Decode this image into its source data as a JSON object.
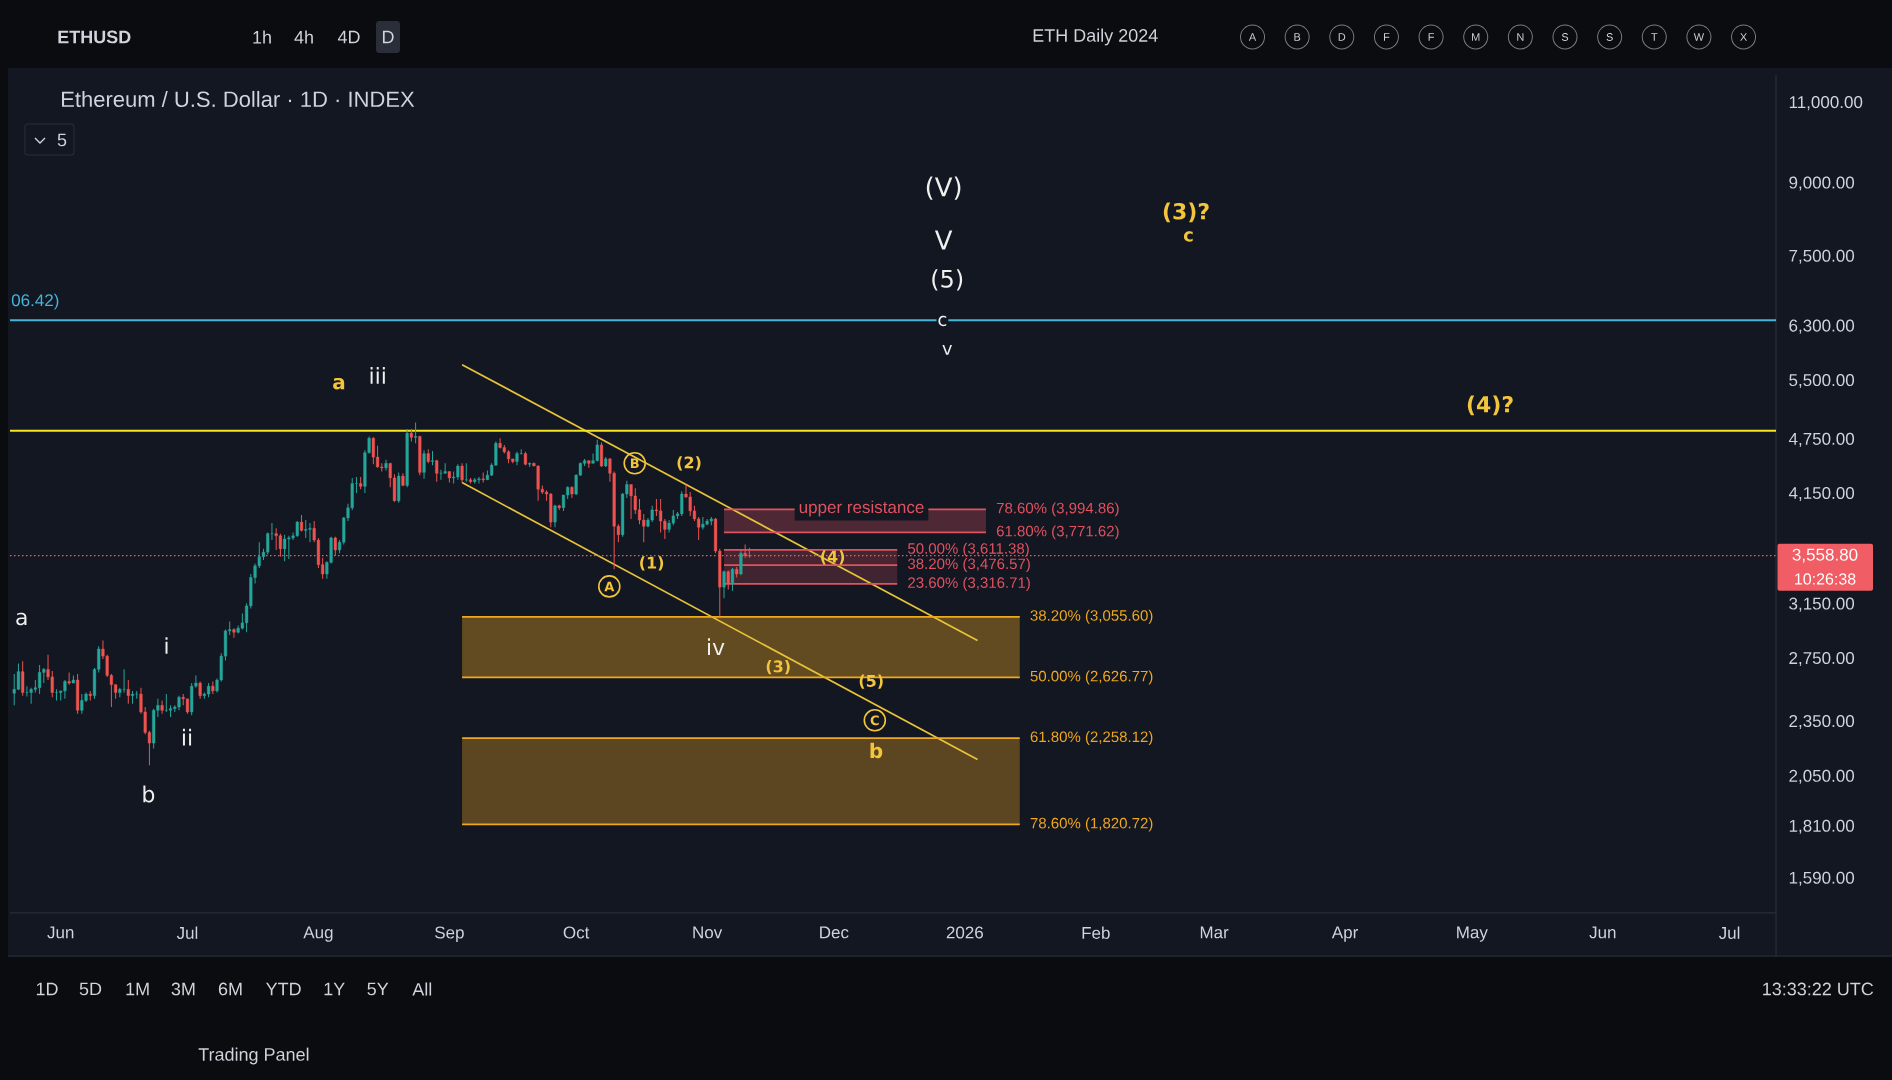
{
  "chart_data": {
    "type": "candlestick",
    "title": "Ethereum / U.S. Dollar · 1D · INDEX",
    "log": "y",
    "xlim": [
      "2025-05-20",
      "2026-07-12"
    ],
    "ylim": [
      1460,
      11800
    ],
    "xticks": [
      {
        "value": "2025-06-01",
        "label": "Jun"
      },
      {
        "value": "2025-07-01",
        "label": "Jul"
      },
      {
        "value": "2025-08-01",
        "label": "Aug"
      },
      {
        "value": "2025-09-01",
        "label": "Sep"
      },
      {
        "value": "2025-10-01",
        "label": "Oct"
      },
      {
        "value": "2025-11-01",
        "label": "Nov"
      },
      {
        "value": "2025-12-01",
        "label": "Dec"
      },
      {
        "value": "2026-01-01",
        "label": "2026"
      },
      {
        "value": "2026-02-01",
        "label": "Feb"
      },
      {
        "value": "2026-03-01",
        "label": "Mar"
      },
      {
        "value": "2026-04-01",
        "label": "Apr"
      },
      {
        "value": "2026-05-01",
        "label": "May"
      },
      {
        "value": "2026-06-01",
        "label": "Jun"
      },
      {
        "value": "2026-07-01",
        "label": "Jul"
      }
    ],
    "yticks": [
      {
        "value": 11000,
        "label": "11,000.00"
      },
      {
        "value": 9000,
        "label": "9,000.00"
      },
      {
        "value": 7500,
        "label": "7,500.00"
      },
      {
        "value": 6300,
        "label": "6,300.00"
      },
      {
        "value": 5500,
        "label": "5,500.00"
      },
      {
        "value": 4750,
        "label": "4,750.00"
      },
      {
        "value": 4150,
        "label": "4,150.00"
      },
      {
        "value": 3150,
        "label": "3,150.00"
      },
      {
        "value": 2750,
        "label": "2,750.00"
      },
      {
        "value": 2350,
        "label": "2,350.00"
      },
      {
        "value": 2050,
        "label": "2,050.00"
      },
      {
        "value": 1810,
        "label": "1,810.00"
      },
      {
        "value": 1590,
        "label": "1,590.00"
      }
    ],
    "x": [
      "2025-05-21",
      "2025-05-22",
      "2025-05-23",
      "2025-05-24",
      "2025-05-25",
      "2025-05-26",
      "2025-05-27",
      "2025-05-28",
      "2025-05-29",
      "2025-05-30",
      "2025-05-31",
      "2025-06-01",
      "2025-06-02",
      "2025-06-03",
      "2025-06-04",
      "2025-06-05",
      "2025-06-06",
      "2025-06-07",
      "2025-06-08",
      "2025-06-09",
      "2025-06-10",
      "2025-06-11",
      "2025-06-12",
      "2025-06-13",
      "2025-06-14",
      "2025-06-15",
      "2025-06-16",
      "2025-06-17",
      "2025-06-18",
      "2025-06-19",
      "2025-06-20",
      "2025-06-21",
      "2025-06-22",
      "2025-06-23",
      "2025-06-24",
      "2025-06-25",
      "2025-06-26",
      "2025-06-27",
      "2025-06-28",
      "2025-06-29",
      "2025-06-30",
      "2025-07-01",
      "2025-07-02",
      "2025-07-03",
      "2025-07-04",
      "2025-07-05",
      "2025-07-06",
      "2025-07-07",
      "2025-07-08",
      "2025-07-09",
      "2025-07-10",
      "2025-07-11",
      "2025-07-12",
      "2025-07-13",
      "2025-07-14",
      "2025-07-15",
      "2025-07-16",
      "2025-07-17",
      "2025-07-18",
      "2025-07-19",
      "2025-07-20",
      "2025-07-21",
      "2025-07-22",
      "2025-07-23",
      "2025-07-24",
      "2025-07-25",
      "2025-07-26",
      "2025-07-27",
      "2025-07-28",
      "2025-07-29",
      "2025-07-30",
      "2025-07-31",
      "2025-08-01",
      "2025-08-02",
      "2025-08-03",
      "2025-08-04",
      "2025-08-05",
      "2025-08-06",
      "2025-08-07",
      "2025-08-08",
      "2025-08-09",
      "2025-08-10",
      "2025-08-11",
      "2025-08-12",
      "2025-08-13",
      "2025-08-14",
      "2025-08-15",
      "2025-08-16",
      "2025-08-17",
      "2025-08-18",
      "2025-08-19",
      "2025-08-20",
      "2025-08-21",
      "2025-08-22",
      "2025-08-23",
      "2025-08-24",
      "2025-08-25",
      "2025-08-26",
      "2025-08-27",
      "2025-08-28",
      "2025-08-29",
      "2025-08-30",
      "2025-08-31",
      "2025-09-01",
      "2025-09-02",
      "2025-09-03",
      "2025-09-04",
      "2025-09-05",
      "2025-09-06",
      "2025-09-07",
      "2025-09-08",
      "2025-09-09",
      "2025-09-10",
      "2025-09-11",
      "2025-09-12",
      "2025-09-13",
      "2025-09-14",
      "2025-09-15",
      "2025-09-16",
      "2025-09-17",
      "2025-09-18",
      "2025-09-19",
      "2025-09-20",
      "2025-09-21",
      "2025-09-22",
      "2025-09-23",
      "2025-09-24",
      "2025-09-25",
      "2025-09-26",
      "2025-09-27",
      "2025-09-28",
      "2025-09-29",
      "2025-09-30",
      "2025-10-01",
      "2025-10-02",
      "2025-10-03",
      "2025-10-04",
      "2025-10-05",
      "2025-10-06",
      "2025-10-07",
      "2025-10-08",
      "2025-10-09",
      "2025-10-10",
      "2025-10-11",
      "2025-10-12",
      "2025-10-13",
      "2025-10-14",
      "2025-10-15",
      "2025-10-16",
      "2025-10-17",
      "2025-10-18",
      "2025-10-19",
      "2025-10-20",
      "2025-10-21",
      "2025-10-22",
      "2025-10-23",
      "2025-10-24",
      "2025-10-25",
      "2025-10-26",
      "2025-10-27",
      "2025-10-28",
      "2025-10-29",
      "2025-10-30",
      "2025-10-31",
      "2025-11-01",
      "2025-11-02",
      "2025-11-03",
      "2025-11-04",
      "2025-11-05",
      "2025-11-06",
      "2025-11-07",
      "2025-11-08",
      "2025-11-09",
      "2025-11-10",
      "2025-11-11"
    ],
    "ohlc": [
      [
        2525,
        2650,
        2450,
        2550
      ],
      [
        2550,
        2720,
        2545,
        2665
      ],
      [
        2665,
        2735,
        2510,
        2530
      ],
      [
        2530,
        2570,
        2505,
        2530
      ],
      [
        2530,
        2560,
        2460,
        2550
      ],
      [
        2550,
        2610,
        2530,
        2560
      ],
      [
        2560,
        2710,
        2520,
        2660
      ],
      [
        2660,
        2690,
        2590,
        2680
      ],
      [
        2680,
        2780,
        2610,
        2630
      ],
      [
        2630,
        2670,
        2500,
        2530
      ],
      [
        2530,
        2550,
        2480,
        2530
      ],
      [
        2530,
        2540,
        2480,
        2540
      ],
      [
        2540,
        2610,
        2490,
        2600
      ],
      [
        2600,
        2660,
        2580,
        2590
      ],
      [
        2590,
        2640,
        2590,
        2610
      ],
      [
        2610,
        2650,
        2400,
        2420
      ],
      [
        2420,
        2520,
        2400,
        2480
      ],
      [
        2480,
        2530,
        2470,
        2520
      ],
      [
        2520,
        2540,
        2480,
        2510
      ],
      [
        2510,
        2690,
        2490,
        2680
      ],
      [
        2680,
        2840,
        2660,
        2820
      ],
      [
        2820,
        2880,
        2750,
        2770
      ],
      [
        2770,
        2780,
        2630,
        2640
      ],
      [
        2640,
        2650,
        2440,
        2580
      ],
      [
        2580,
        2580,
        2490,
        2530
      ],
      [
        2530,
        2560,
        2500,
        2550
      ],
      [
        2550,
        2680,
        2530,
        2550
      ],
      [
        2550,
        2610,
        2460,
        2510
      ],
      [
        2510,
        2540,
        2460,
        2520
      ],
      [
        2520,
        2540,
        2490,
        2520
      ],
      [
        2520,
        2560,
        2400,
        2410
      ],
      [
        2410,
        2440,
        2280,
        2290
      ],
      [
        2290,
        2300,
        2110,
        2230
      ],
      [
        2230,
        2430,
        2200,
        2420
      ],
      [
        2420,
        2490,
        2380,
        2450
      ],
      [
        2450,
        2480,
        2400,
        2420
      ],
      [
        2420,
        2520,
        2410,
        2420
      ],
      [
        2420,
        2450,
        2380,
        2430
      ],
      [
        2430,
        2450,
        2410,
        2440
      ],
      [
        2440,
        2510,
        2420,
        2500
      ],
      [
        2500,
        2520,
        2450,
        2490
      ],
      [
        2490,
        2490,
        2400,
        2410
      ],
      [
        2410,
        2590,
        2390,
        2570
      ],
      [
        2570,
        2640,
        2560,
        2590
      ],
      [
        2590,
        2600,
        2490,
        2510
      ],
      [
        2510,
        2530,
        2490,
        2520
      ],
      [
        2520,
        2590,
        2500,
        2570
      ],
      [
        2570,
        2600,
        2520,
        2540
      ],
      [
        2540,
        2620,
        2530,
        2610
      ],
      [
        2610,
        2790,
        2600,
        2770
      ],
      [
        2770,
        2960,
        2740,
        2950
      ],
      [
        2950,
        3020,
        2920,
        2960
      ],
      [
        2960,
        2970,
        2900,
        2940
      ],
      [
        2940,
        2990,
        2930,
        2970
      ],
      [
        2970,
        3080,
        2960,
        3010
      ],
      [
        3010,
        3160,
        2940,
        3140
      ],
      [
        3140,
        3400,
        3120,
        3370
      ],
      [
        3370,
        3490,
        3320,
        3470
      ],
      [
        3470,
        3680,
        3450,
        3550
      ],
      [
        3550,
        3620,
        3520,
        3590
      ],
      [
        3590,
        3770,
        3570,
        3760
      ],
      [
        3760,
        3860,
        3700,
        3760
      ],
      [
        3760,
        3810,
        3610,
        3740
      ],
      [
        3740,
        3760,
        3550,
        3620
      ],
      [
        3620,
        3750,
        3510,
        3710
      ],
      [
        3710,
        3740,
        3530,
        3720
      ],
      [
        3720,
        3770,
        3700,
        3740
      ],
      [
        3740,
        3880,
        3730,
        3870
      ],
      [
        3870,
        3940,
        3780,
        3790
      ],
      [
        3790,
        3890,
        3720,
        3800
      ],
      [
        3800,
        3860,
        3680,
        3810
      ],
      [
        3810,
        3880,
        3680,
        3700
      ],
      [
        3700,
        3720,
        3450,
        3480
      ],
      [
        3480,
        3540,
        3360,
        3400
      ],
      [
        3400,
        3510,
        3360,
        3500
      ],
      [
        3500,
        3730,
        3490,
        3720
      ],
      [
        3720,
        3730,
        3560,
        3610
      ],
      [
        3610,
        3700,
        3580,
        3680
      ],
      [
        3680,
        3920,
        3660,
        3910
      ],
      [
        3910,
        4050,
        3880,
        4010
      ],
      [
        4010,
        4320,
        3990,
        4260
      ],
      [
        4260,
        4330,
        4160,
        4260
      ],
      [
        4260,
        4330,
        4200,
        4230
      ],
      [
        4230,
        4630,
        4160,
        4600
      ],
      [
        4600,
        4790,
        4590,
        4770
      ],
      [
        4770,
        4780,
        4470,
        4550
      ],
      [
        4550,
        4680,
        4430,
        4440
      ],
      [
        4440,
        4480,
        4390,
        4430
      ],
      [
        4430,
        4520,
        4400,
        4480
      ],
      [
        4480,
        4480,
        4220,
        4320
      ],
      [
        4320,
        4360,
        4070,
        4080
      ],
      [
        4080,
        4380,
        4060,
        4340
      ],
      [
        4340,
        4370,
        4230,
        4240
      ],
      [
        4240,
        4880,
        4220,
        4830
      ],
      [
        4830,
        4880,
        4730,
        4780
      ],
      [
        4780,
        4960,
        4710,
        4790
      ],
      [
        4790,
        4800,
        4350,
        4380
      ],
      [
        4380,
        4630,
        4310,
        4590
      ],
      [
        4590,
        4640,
        4480,
        4500
      ],
      [
        4500,
        4620,
        4460,
        4510
      ],
      [
        4510,
        4520,
        4280,
        4370
      ],
      [
        4370,
        4410,
        4300,
        4370
      ],
      [
        4370,
        4480,
        4370,
        4390
      ],
      [
        4390,
        4390,
        4270,
        4320
      ],
      [
        4320,
        4390,
        4260,
        4330
      ],
      [
        4330,
        4470,
        4300,
        4450
      ],
      [
        4450,
        4480,
        4270,
        4300
      ],
      [
        4300,
        4480,
        4280,
        4300
      ],
      [
        4300,
        4320,
        4260,
        4280
      ],
      [
        4280,
        4320,
        4260,
        4300
      ],
      [
        4300,
        4330,
        4260,
        4310
      ],
      [
        4310,
        4380,
        4270,
        4300
      ],
      [
        4300,
        4400,
        4300,
        4350
      ],
      [
        4350,
        4480,
        4340,
        4460
      ],
      [
        4460,
        4730,
        4450,
        4710
      ],
      [
        4710,
        4770,
        4650,
        4660
      ],
      [
        4660,
        4690,
        4590,
        4610
      ],
      [
        4610,
        4630,
        4480,
        4530
      ],
      [
        4530,
        4530,
        4480,
        4500
      ],
      [
        4500,
        4610,
        4460,
        4590
      ],
      [
        4590,
        4640,
        4580,
        4590
      ],
      [
        4590,
        4610,
        4460,
        4470
      ],
      [
        4470,
        4490,
        4440,
        4480
      ],
      [
        4480,
        4490,
        4450,
        4450
      ],
      [
        4450,
        4460,
        4080,
        4200
      ],
      [
        4200,
        4240,
        4150,
        4170
      ],
      [
        4170,
        4190,
        4080,
        4150
      ],
      [
        4150,
        4160,
        3820,
        3870
      ],
      [
        3870,
        4040,
        3820,
        4030
      ],
      [
        4030,
        4040,
        3990,
        4010
      ],
      [
        4010,
        4140,
        3980,
        4140
      ],
      [
        4140,
        4230,
        4100,
        4220
      ],
      [
        4220,
        4230,
        4110,
        4150
      ],
      [
        4150,
        4360,
        4140,
        4350
      ],
      [
        4350,
        4490,
        4340,
        4480
      ],
      [
        4480,
        4530,
        4450,
        4510
      ],
      [
        4510,
        4510,
        4430,
        4480
      ],
      [
        4480,
        4590,
        4480,
        4510
      ],
      [
        4510,
        4750,
        4500,
        4690
      ],
      [
        4690,
        4720,
        4440,
        4450
      ],
      [
        4450,
        4550,
        4440,
        4530
      ],
      [
        4530,
        4540,
        4280,
        4370
      ],
      [
        4370,
        4390,
        3440,
        3830
      ],
      [
        3830,
        3850,
        3680,
        3750
      ],
      [
        3750,
        4160,
        3730,
        4150
      ],
      [
        4150,
        4290,
        4110,
        4250
      ],
      [
        4250,
        4250,
        3900,
        4130
      ],
      [
        4130,
        4210,
        3950,
        3990
      ],
      [
        3990,
        4100,
        3850,
        3890
      ],
      [
        3890,
        3950,
        3680,
        3830
      ],
      [
        3830,
        3910,
        3820,
        3890
      ],
      [
        3890,
        4030,
        3870,
        3990
      ],
      [
        3990,
        4100,
        3930,
        3980
      ],
      [
        3980,
        4100,
        3770,
        3880
      ],
      [
        3880,
        3900,
        3710,
        3800
      ],
      [
        3800,
        3890,
        3770,
        3860
      ],
      [
        3860,
        3990,
        3840,
        3930
      ],
      [
        3930,
        3970,
        3900,
        3950
      ],
      [
        3950,
        4180,
        3930,
        4150
      ],
      [
        4150,
        4250,
        4110,
        4120
      ],
      [
        4120,
        4170,
        3930,
        3980
      ],
      [
        3980,
        4030,
        3880,
        3900
      ],
      [
        3900,
        3920,
        3700,
        3820
      ],
      [
        3820,
        3920,
        3800,
        3850
      ],
      [
        3850,
        3900,
        3840,
        3880
      ],
      [
        3880,
        3920,
        3840,
        3900
      ],
      [
        3900,
        3910,
        3580,
        3600
      ],
      [
        3600,
        3620,
        3060,
        3290
      ],
      [
        3290,
        3430,
        3200,
        3420
      ],
      [
        3420,
        3430,
        3270,
        3320
      ],
      [
        3320,
        3450,
        3260,
        3440
      ],
      [
        3440,
        3460,
        3370,
        3400
      ],
      [
        3400,
        3600,
        3390,
        3580
      ],
      [
        3580,
        3660,
        3540,
        3560
      ],
      [
        3560,
        3630,
        3540,
        3558.8
      ]
    ],
    "colors": [
      "#26a69a",
      "#26a69a",
      "#ef5350",
      "#26a69a",
      "#26a69a",
      "#26a69a",
      "#26a69a",
      "#26a69a",
      "#ef5350",
      "#ef5350",
      "#26a69a",
      "#26a69a",
      "#26a69a",
      "#ef5350",
      "#26a69a",
      "#ef5350",
      "#26a69a",
      "#26a69a",
      "#ef5350",
      "#26a69a",
      "#26a69a",
      "#ef5350",
      "#ef5350",
      "#ef5350",
      "#ef5350",
      "#26a69a",
      "#26a69a",
      "#ef5350",
      "#26a69a",
      "#26a69a",
      "#ef5350",
      "#ef5350",
      "#ef5350",
      "#26a69a",
      "#26a69a",
      "#ef5350",
      "#26a69a",
      "#26a69a",
      "#26a69a",
      "#26a69a",
      "#ef5350",
      "#ef5350",
      "#26a69a",
      "#26a69a",
      "#ef5350",
      "#26a69a",
      "#26a69a",
      "#ef5350",
      "#26a69a",
      "#26a69a",
      "#26a69a",
      "#26a69a",
      "#ef5350",
      "#26a69a",
      "#26a69a",
      "#26a69a",
      "#26a69a",
      "#26a69a",
      "#26a69a",
      "#26a69a",
      "#26a69a",
      "#26a69a",
      "#ef5350",
      "#ef5350",
      "#26a69a",
      "#26a69a",
      "#26a69a",
      "#26a69a",
      "#ef5350",
      "#26a69a",
      "#26a69a",
      "#ef5350",
      "#ef5350",
      "#ef5350",
      "#26a69a",
      "#26a69a",
      "#ef5350",
      "#26a69a",
      "#26a69a",
      "#26a69a",
      "#26a69a",
      "#26a69a",
      "#ef5350",
      "#26a69a",
      "#26a69a",
      "#ef5350",
      "#ef5350",
      "#ef5350",
      "#26a69a",
      "#ef5350",
      "#ef5350",
      "#26a69a",
      "#ef5350",
      "#26a69a",
      "#ef5350",
      "#26a69a",
      "#ef5350",
      "#26a69a",
      "#ef5350",
      "#26a69a",
      "#ef5350",
      "#26a69a",
      "#26a69a",
      "#ef5350",
      "#26a69a",
      "#26a69a",
      "#ef5350",
      "#26a69a",
      "#ef5350",
      "#26a69a",
      "#26a69a",
      "#ef5350",
      "#26a69a",
      "#26a69a",
      "#26a69a",
      "#ef5350",
      "#ef5350",
      "#ef5350",
      "#ef5350",
      "#26a69a",
      "#26a69a",
      "#ef5350",
      "#26a69a",
      "#ef5350",
      "#ef5350",
      "#ef5350",
      "#ef5350",
      "#ef5350",
      "#26a69a",
      "#ef5350",
      "#26a69a",
      "#26a69a",
      "#ef5350",
      "#26a69a",
      "#26a69a",
      "#26a69a",
      "#ef5350",
      "#26a69a",
      "#26a69a",
      "#ef5350",
      "#26a69a",
      "#ef5350",
      "#ef5350",
      "#ef5350",
      "#26a69a",
      "#26a69a",
      "#ef5350",
      "#ef5350",
      "#ef5350",
      "#ef5350",
      "#26a69a",
      "#26a69a",
      "#ef5350",
      "#ef5350",
      "#ef5350",
      "#26a69a",
      "#26a69a",
      "#26a69a",
      "#26a69a",
      "#ef5350",
      "#ef5350",
      "#ef5350",
      "#ef5350",
      "#26a69a",
      "#26a69a",
      "#26a69a",
      "#ef5350",
      "#ef5350",
      "#26a69a",
      "#ef5350",
      "#26a69a",
      "#ef5350",
      "#26a69a",
      "#ef5350",
      "#ef5350"
    ],
    "series": [
      {
        "type": "line",
        "x": [
          "2025-09-04",
          "2026-01-04"
        ],
        "values": [
          5730,
          2880
        ],
        "color": "#e8c33a"
      },
      {
        "type": "line",
        "x": [
          "2025-09-04",
          "2026-01-04"
        ],
        "values": [
          4270,
          2140
        ],
        "color": "#e8c33a"
      },
      {
        "type": "line",
        "name": "38.20% (3,055.60)",
        "x": [
          "2025-09-04",
          "2026-01-14"
        ],
        "values": [
          3055.6,
          3055.6
        ],
        "color": "#f0a81e"
      },
      {
        "type": "line",
        "name": "50.00% (2,626.77)",
        "x": [
          "2025-09-04",
          "2026-01-14"
        ],
        "values": [
          2626.77,
          2626.77
        ],
        "lower": [
          2626.77,
          2626.77
        ],
        "upper": [
          3055.6,
          3055.6
        ],
        "color": "#f0a81e"
      },
      {
        "type": "line",
        "name": "61.80% (2,258.12)",
        "x": [
          "2025-09-04",
          "2026-01-14"
        ],
        "values": [
          2258.12,
          2258.12
        ],
        "color": "#f0a81e"
      },
      {
        "type": "line",
        "name": "78.60% (1,820.72)",
        "x": [
          "2025-09-04",
          "2026-01-14"
        ],
        "values": [
          1820.72,
          1820.72
        ],
        "lower": [
          1820.72,
          1820.72
        ],
        "upper": [
          2258.12,
          2258.12
        ],
        "color": "#f0a81e"
      },
      {
        "type": "line",
        "name": "78.60% (3,994.86)",
        "x": [
          "2025-11-05",
          "2026-01-06"
        ],
        "values": [
          3994.86,
          3994.86
        ],
        "color": "#e0525f"
      },
      {
        "type": "line",
        "name": "61.80% (3,771.62)",
        "x": [
          "2025-11-05",
          "2026-01-06"
        ],
        "values": [
          3771.62,
          3771.62
        ],
        "lower": [
          3771.62,
          3771.62
        ],
        "upper": [
          3994.86,
          3994.86
        ],
        "color": "#e0525f"
      },
      {
        "type": "line",
        "name": "50.00% (3,611.38)",
        "x": [
          "2025-11-05",
          "2025-12-16"
        ],
        "values": [
          3611.38,
          3611.38
        ],
        "color": "#e0525f"
      },
      {
        "type": "line",
        "name": "38.20% (3,476.57)",
        "x": [
          "2025-11-05",
          "2025-12-16"
        ],
        "values": [
          3476.57,
          3476.57
        ],
        "lower": [
          3476.57,
          3476.57
        ],
        "upper": [
          3611.38,
          3611.38
        ],
        "color": "#e0525f"
      },
      {
        "type": "line",
        "name": "23.60% (3,316.71)",
        "x": [
          "2025-11-05",
          "2025-12-16"
        ],
        "values": [
          3316.71,
          3316.71
        ],
        "lower": [
          3316.71,
          3316.71
        ],
        "upper": [
          3476.57,
          3476.57
        ],
        "color": "#e0525f"
      }
    ],
    "ref_lines": [
      {
        "axis": "y",
        "value": 6400,
        "color": "#45b5da",
        "line_style": "solid"
      },
      {
        "axis": "y",
        "value": 4860,
        "color": "#f5e61f",
        "line_style": "solid"
      },
      {
        "axis": "y",
        "value": 3558.8,
        "label": "3,558.80",
        "color": "#f05d64",
        "line_style": "dotted"
      }
    ],
    "annotations": [
      "a",
      "b",
      "i",
      "ii",
      "iii",
      "iv",
      "(V)",
      "V",
      "(5)",
      "c",
      "v",
      "a",
      "B",
      "(2)",
      "(1)",
      "A",
      "(4)",
      "(3)",
      "(5)",
      "C",
      "b",
      "(3)?",
      "c",
      "(4)?",
      "upper resistance",
      "06.42)",
      "ETHUSD",
      "1h",
      "4h",
      "4D",
      "D",
      "ETH Daily 2024",
      "A",
      "B",
      "D",
      "F",
      "F",
      "M",
      "N",
      "S",
      "S",
      "T",
      "W",
      "X",
      "5",
      "1D",
      "5D",
      "1M",
      "3M",
      "6M",
      "YTD",
      "1Y",
      "5Y",
      "All",
      "13:33:22 UTC",
      "Trading Panel",
      "10:26:38"
    ]
  }
}
